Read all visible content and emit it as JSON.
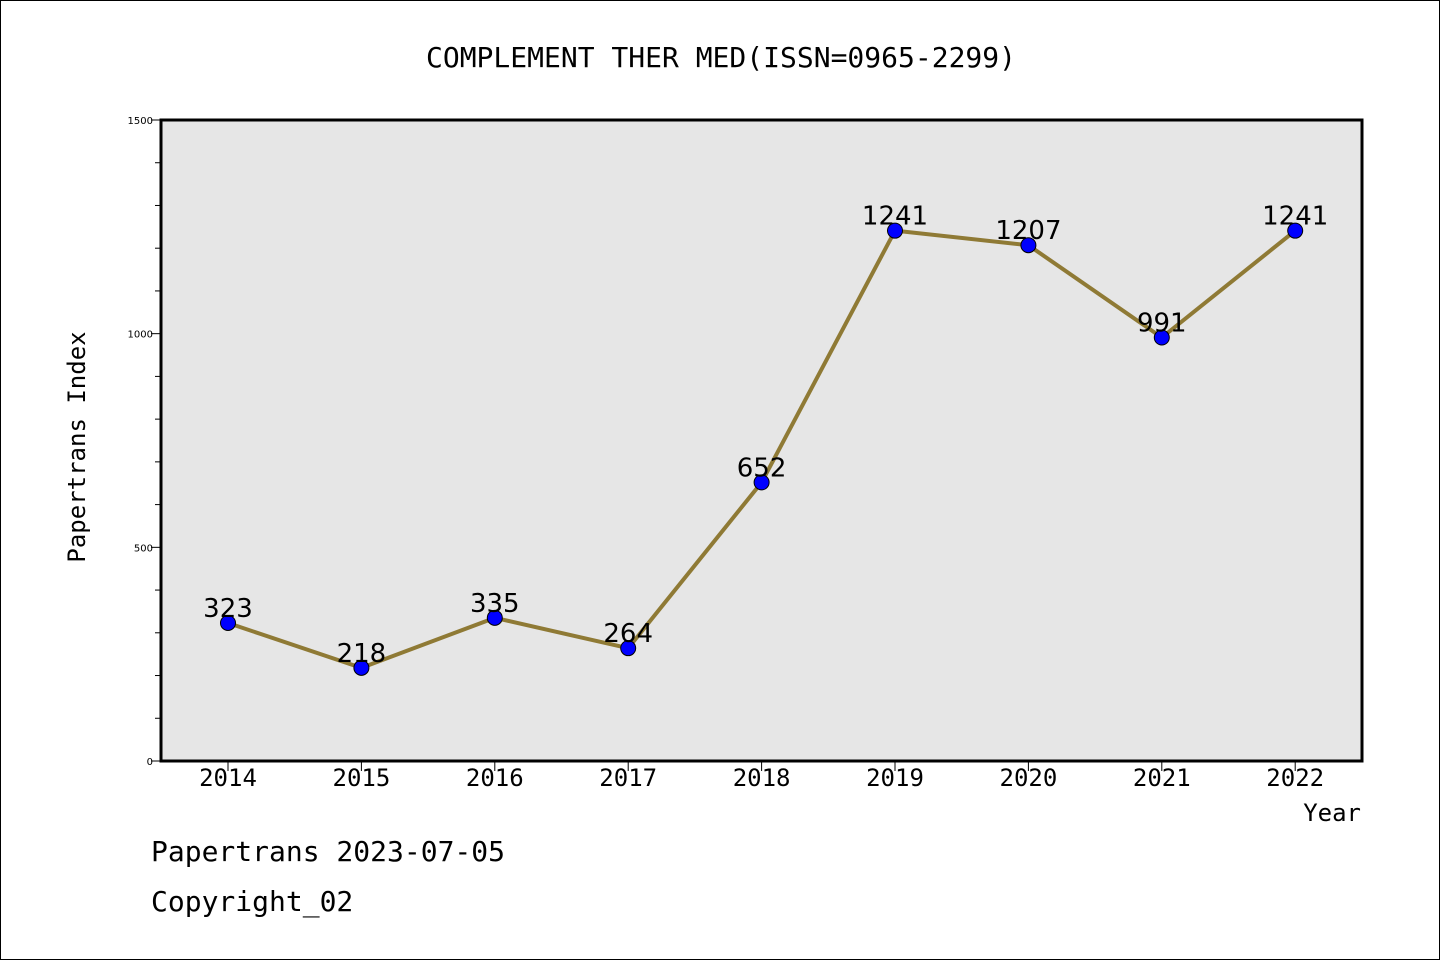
{
  "chart_data": {
    "type": "line",
    "title": "COMPLEMENT THER MED(ISSN=0965-2299)",
    "xlabel": "Year",
    "ylabel": "Papertrans Index",
    "categories": [
      "2014",
      "2015",
      "2016",
      "2017",
      "2018",
      "2019",
      "2020",
      "2021",
      "2022"
    ],
    "series": [
      {
        "values": [
          323,
          218,
          335,
          264,
          652,
          1241,
          1207,
          991,
          1241
        ],
        "data_labels": [
          "323",
          "218",
          "335",
          "264",
          "652",
          "1241",
          "1207",
          "991",
          "1241"
        ]
      }
    ],
    "ylim": [
      0,
      1500
    ],
    "yticks": [
      0,
      500,
      1000,
      1500
    ],
    "ytick_labels": [
      "0",
      "500",
      "1000",
      "1500"
    ],
    "y_minor_step": 100,
    "grid": false,
    "colors": {
      "line": "#8f7a35",
      "marker": "#0000ff",
      "plot_background": "#e6e6e6"
    }
  },
  "footer": {
    "date_line": "Papertrans 2023-07-05",
    "copyright_line": "Copyright_02"
  }
}
